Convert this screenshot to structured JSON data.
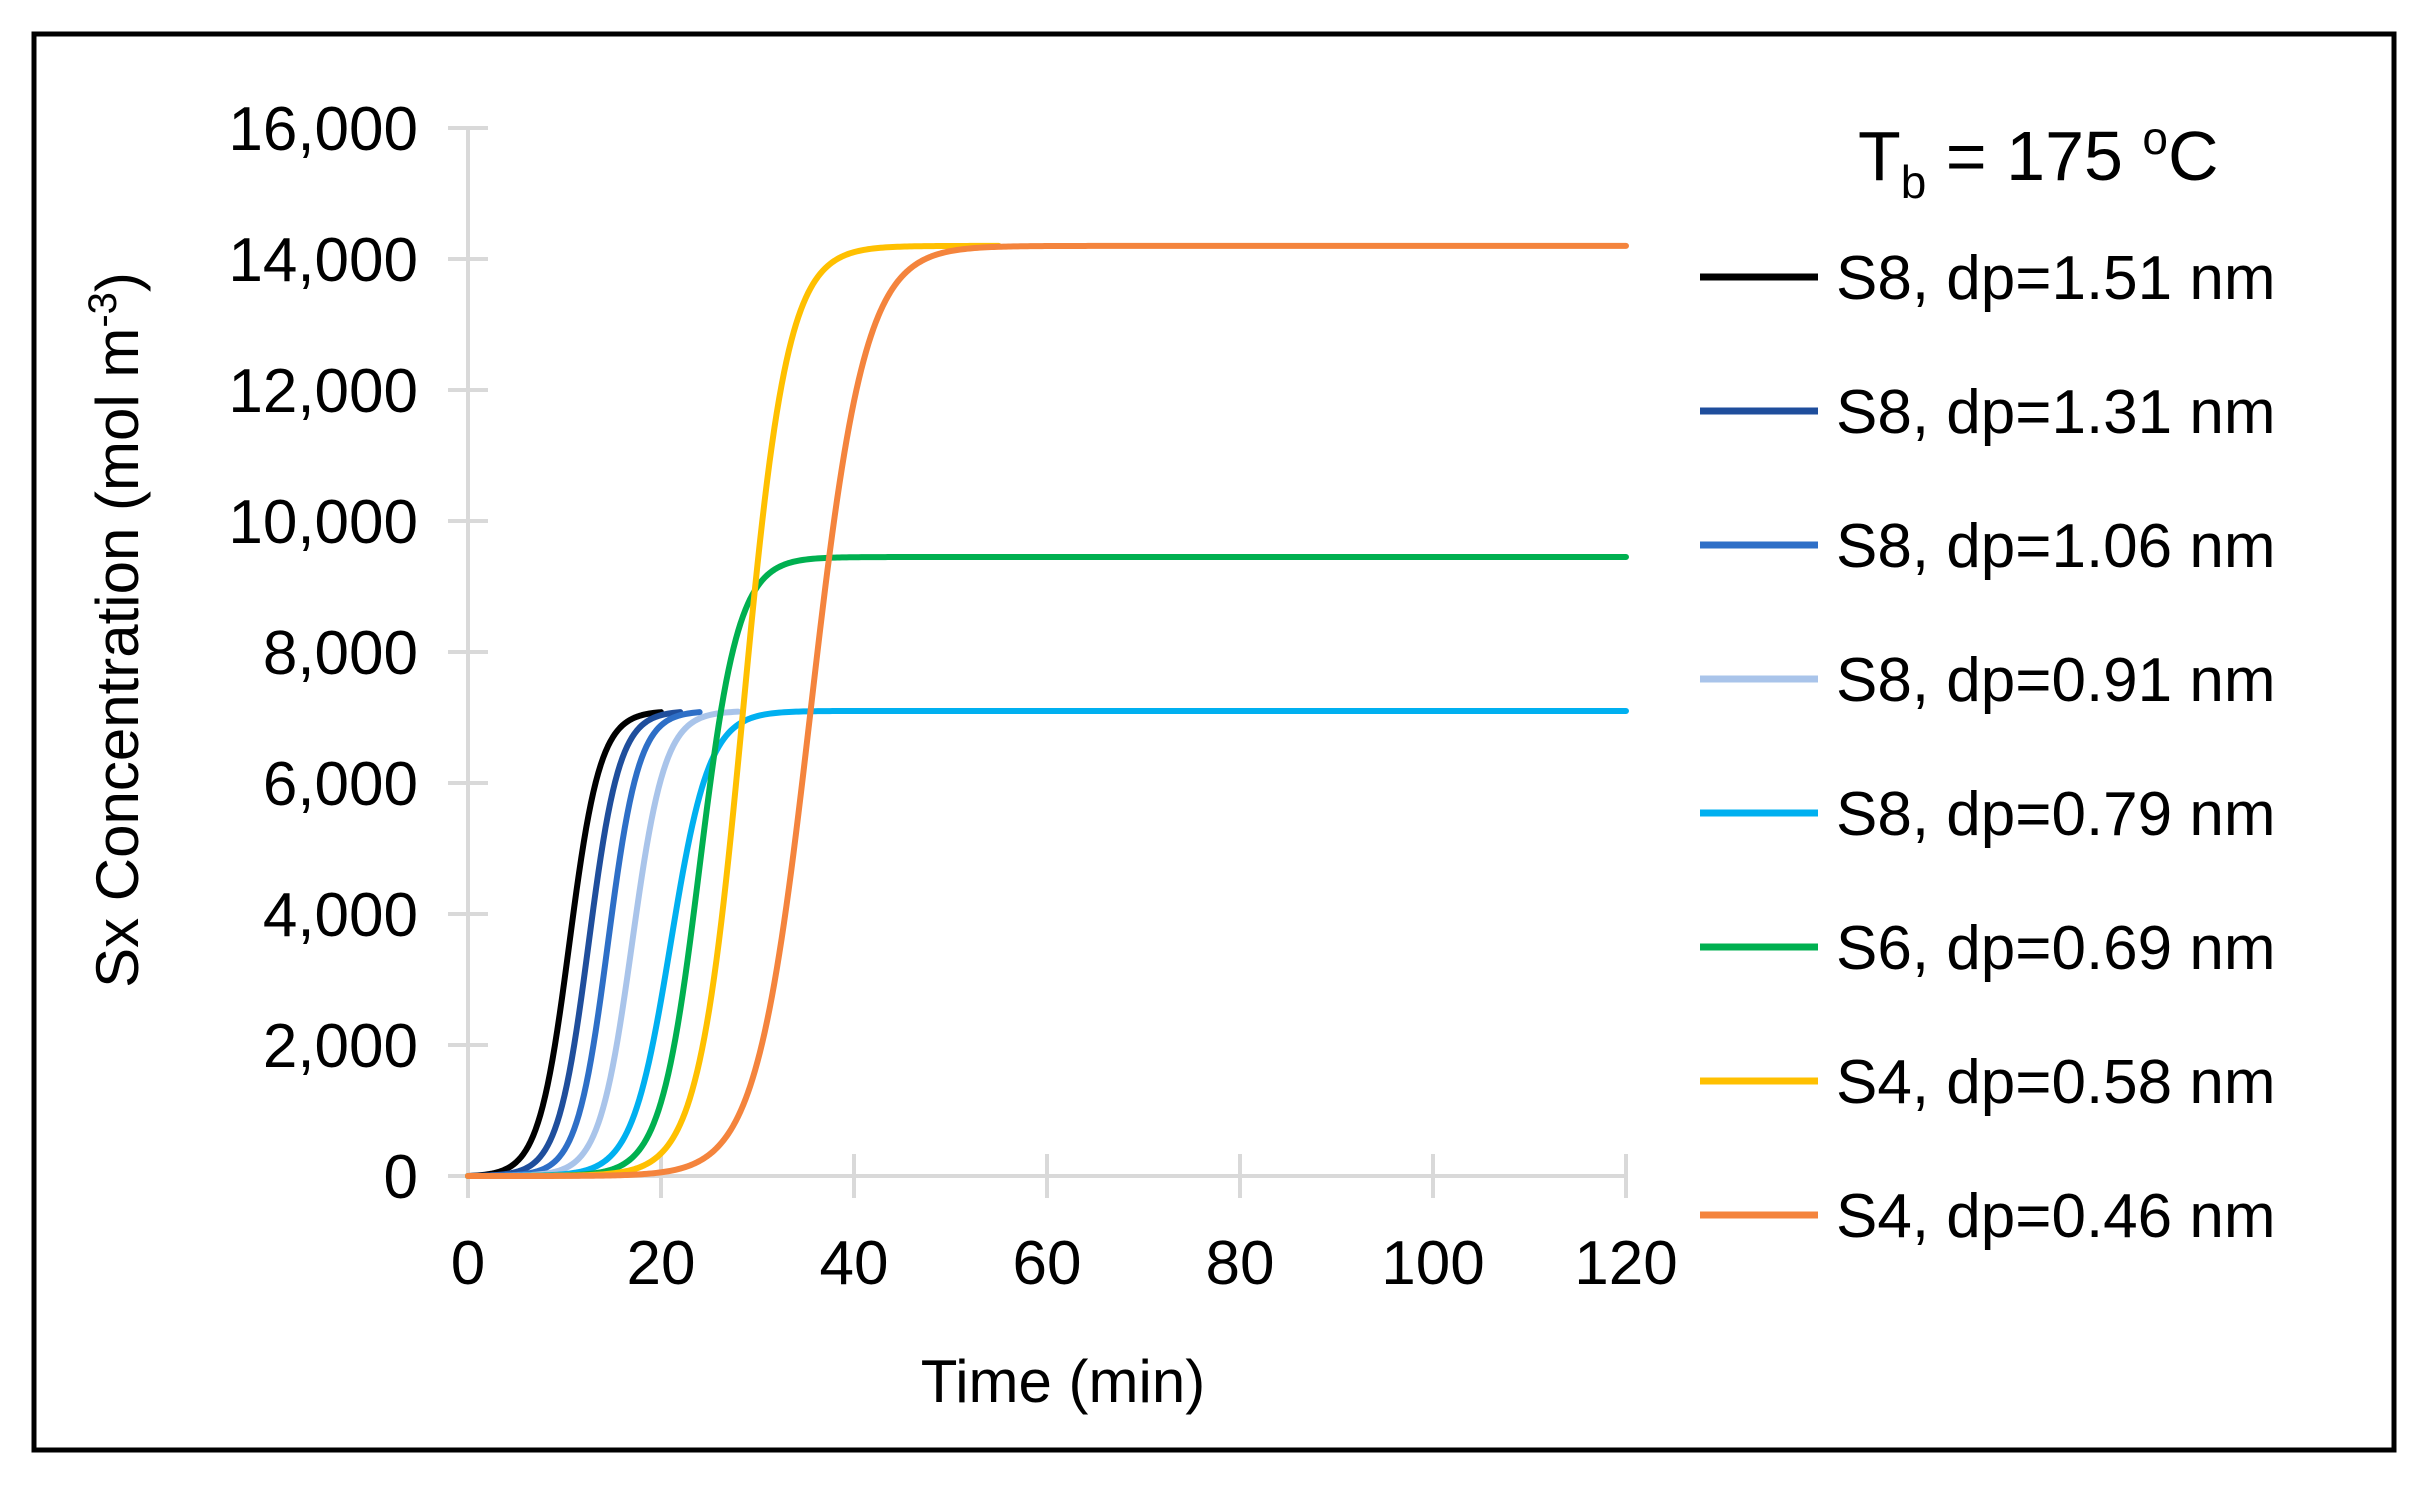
{
  "chart_data": {
    "type": "line",
    "title": "",
    "xlabel": "Time (min)",
    "ylabel": "Sx Concentration (mol m",
    "ylabel_superscript": "-3",
    "ylabel_suffix": ")",
    "xlim": [
      0,
      120
    ],
    "ylim": [
      0,
      16000
    ],
    "xticks": [
      0,
      20,
      40,
      60,
      80,
      100,
      120
    ],
    "xtick_labels": [
      "0",
      "20",
      "40",
      "60",
      "80",
      "100",
      "120"
    ],
    "yticks": [
      0,
      2000,
      4000,
      6000,
      8000,
      10000,
      12000,
      14000,
      16000
    ],
    "ytick_labels": [
      "0",
      "2,000",
      "4,000",
      "6,000",
      "8,000",
      "10,000",
      "12,000",
      "14,000",
      "16,000"
    ],
    "grid": "vertical ticks only",
    "legend_position": "right",
    "annotation": {
      "main": "T",
      "subscript": "b",
      "value": " = 175 ",
      "superscript": "o",
      "unit": "C"
    },
    "series": [
      {
        "name": "S8, dp=1.51 nm",
        "color": "#000000",
        "plateau": 7100,
        "midpoint": 10.5,
        "width": 1.6,
        "x_end": 20
      },
      {
        "name": "S8, dp=1.31 nm",
        "color": "#1f4e9c",
        "plateau": 7100,
        "midpoint": 12.5,
        "width": 1.6,
        "x_end": 22
      },
      {
        "name": "S8, dp=1.06 nm",
        "color": "#2e6fc7",
        "plateau": 7100,
        "midpoint": 14.5,
        "width": 1.6,
        "x_end": 24
      },
      {
        "name": "S8, dp=0.91 nm",
        "color": "#a9c4ea",
        "plateau": 7100,
        "midpoint": 17.0,
        "width": 1.7,
        "x_end": 28
      },
      {
        "name": "S8, dp=0.79 nm",
        "color": "#00b0f0",
        "plateau": 7100,
        "midpoint": 21.0,
        "width": 2.0,
        "x_end": 120
      },
      {
        "name": "S6, dp=0.69 nm",
        "color": "#00b050",
        "plateau": 9450,
        "midpoint": 24.0,
        "width": 2.0,
        "x_end": 120
      },
      {
        "name": "S4, dp=0.58 nm",
        "color": "#ffc000",
        "plateau": 14200,
        "midpoint": 28.5,
        "width": 2.3,
        "x_end": 55
      },
      {
        "name": "S4, dp=0.46 nm",
        "color": "#f4843d",
        "plateau": 14200,
        "midpoint": 35.5,
        "width": 2.8,
        "x_end": 120
      }
    ]
  }
}
